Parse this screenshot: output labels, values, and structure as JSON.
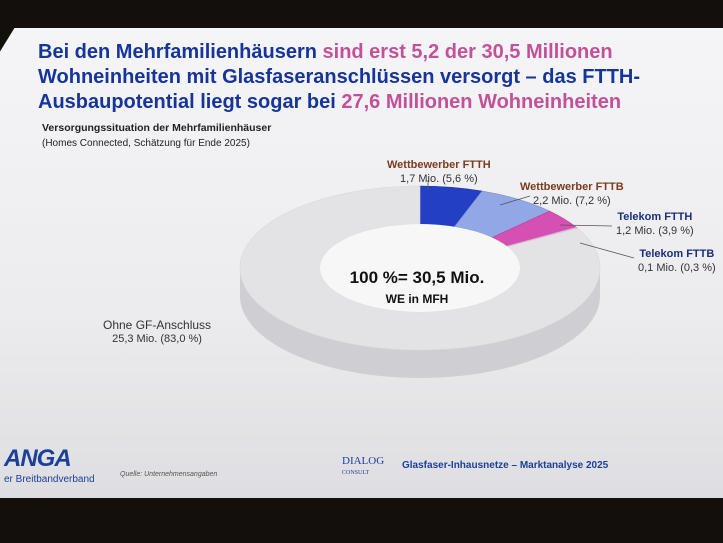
{
  "slide": {
    "title_blue_1": "Bei den Mehrfamilienhäusern ",
    "title_pink_1": "sind erst 5,2 der 30,5 Millionen",
    "title_blue_2": "Wohneinheiten mit Glasfaseranschlüssen versorgt",
    "title_pink_2": " – das FTTH-",
    "title_blue_3": "Ausbaupotential liegt sogar bei ",
    "title_pink_3": "27,6 Millionen Wohneinheiten",
    "subtitle": "Versorgungssituation der Mehrfamilienhäuser",
    "subtitle2": "(Homes Connected, Schätzung für Ende 2025)"
  },
  "chart_data": {
    "type": "pie",
    "donut": true,
    "center_total": "100 %= 30,5 Mio.",
    "center_unit": "WE in MFH",
    "segments": [
      {
        "name": "Wettbewerber FTTH",
        "value_mio": 1.7,
        "value_label": "1,7 Mio.",
        "percent": 5.6,
        "percent_label": "(5,6 %)",
        "color": "#2340c4"
      },
      {
        "name": "Wettbewerber FTTB",
        "value_mio": 2.2,
        "value_label": "2,2 Mio.",
        "percent": 7.2,
        "percent_label": "(7,2 %)",
        "color": "#92a8e6"
      },
      {
        "name": "Telekom FTTH",
        "value_mio": 1.2,
        "value_label": "1,2 Mio.",
        "percent": 3.9,
        "percent_label": "(3,9 %)",
        "color": "#d64fb3"
      },
      {
        "name": "Telekom FTTB",
        "value_mio": 0.1,
        "value_label": "0,1 Mio.",
        "percent": 0.3,
        "percent_label": "(0,3 %)",
        "color": "#f0b8e2"
      },
      {
        "name": "Ohne GF-Anschluss",
        "value_mio": 25.3,
        "value_label": "25,3 Mio.",
        "percent": 83.0,
        "percent_label": "(83,0 %)",
        "color": "#e3e3e6"
      }
    ]
  },
  "footer": {
    "logo": "ANGA",
    "org": "er Breitbandverband",
    "source": "Quelle: Unternehmensangaben",
    "dialog": "DIALOG",
    "dialog_sub": "CONSULT",
    "right": "Glasfaser-Inhausnetze – Marktanalyse 2025"
  }
}
